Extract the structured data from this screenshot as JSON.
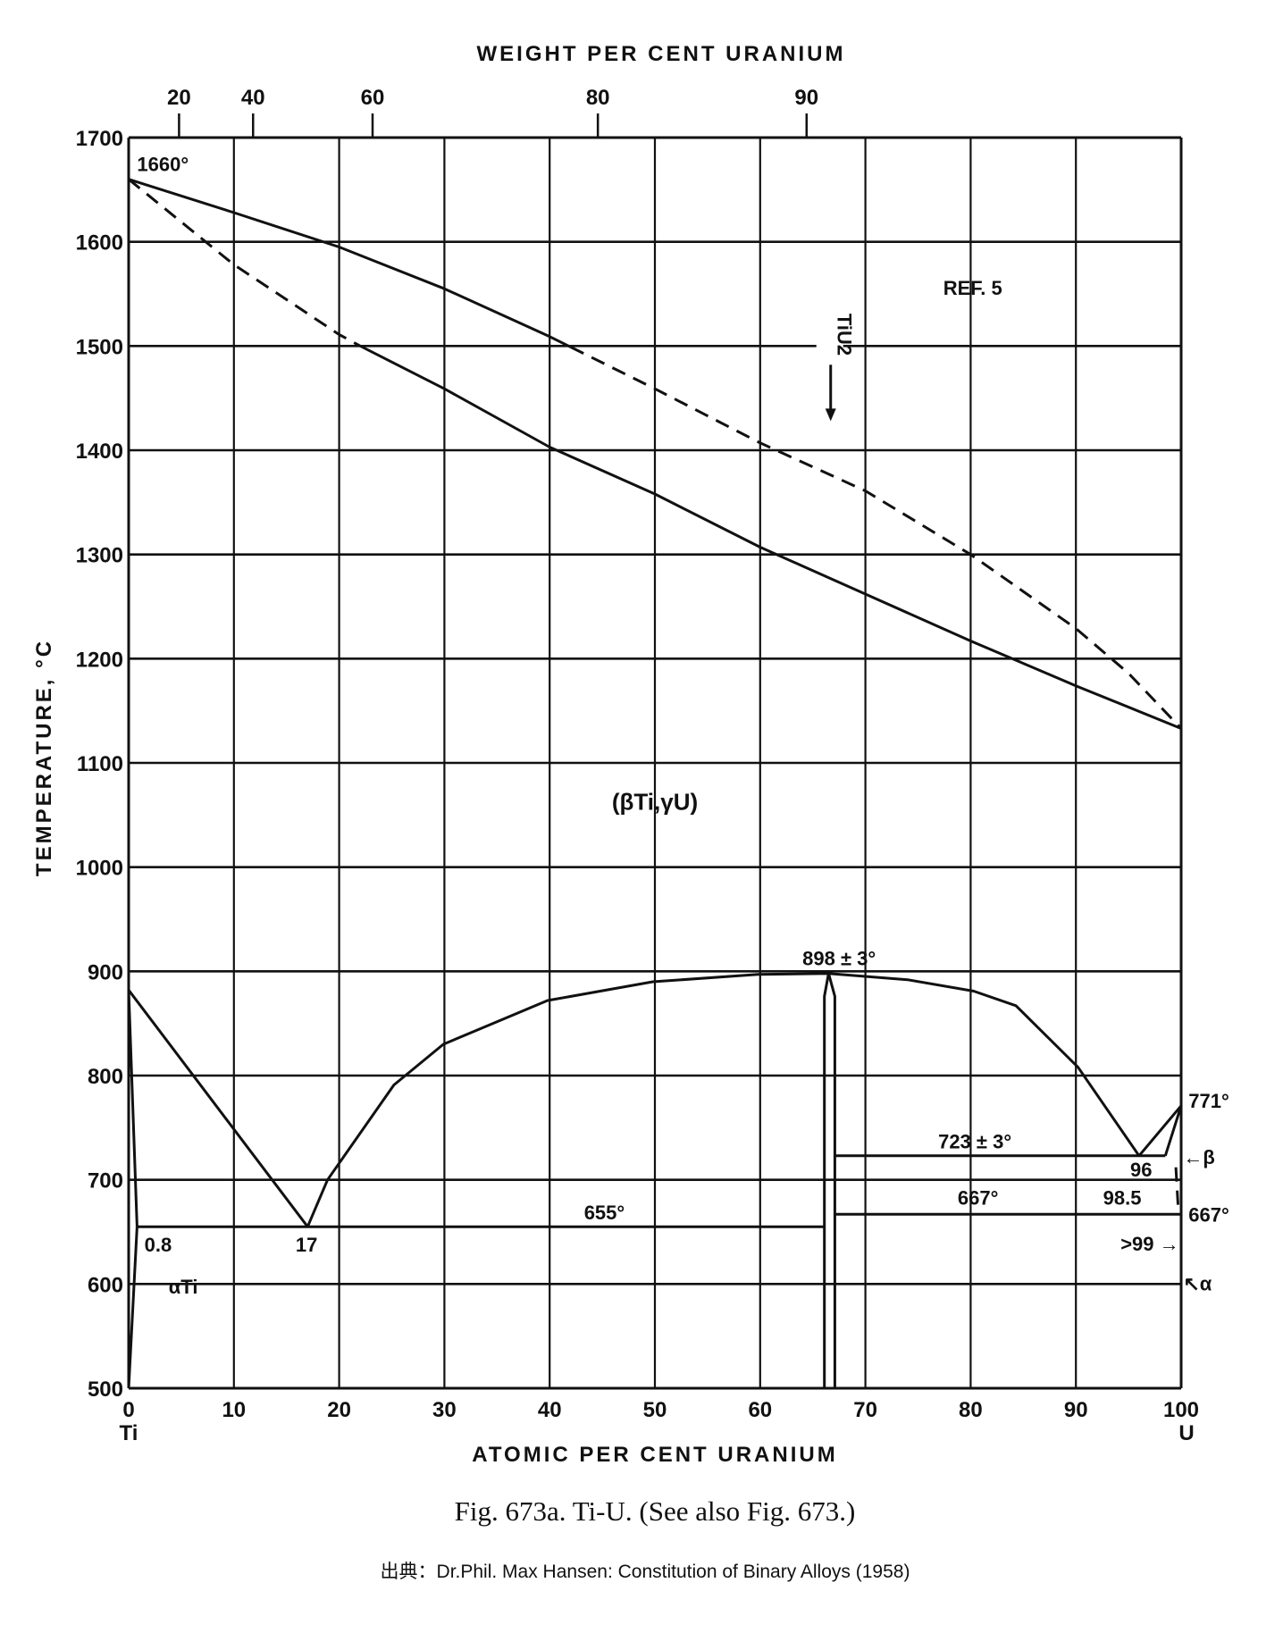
{
  "chart_data": {
    "type": "line",
    "title": "Fig. 673a. Ti-U. (See also Fig. 673.)",
    "source": "出典：Dr.Phil. Max Hansen: Constitution of Binary Alloys (1958)",
    "xlabel": "ATOMIC PER CENT URANIUM",
    "ylabel": "TEMPERATURE, °C",
    "top_xlabel": "WEIGHT PER CENT URANIUM",
    "xlim": [
      0,
      100
    ],
    "ylim": [
      500,
      1700
    ],
    "grid": true,
    "x_ticks": [
      "0",
      "10",
      "20",
      "30",
      "40",
      "50",
      "60",
      "70",
      "80",
      "90",
      "100"
    ],
    "x_end_labels": {
      "left": "Ti",
      "right": "U"
    },
    "y_ticks": [
      "500",
      "600",
      "700",
      "800",
      "900",
      "1000",
      "1100",
      "1200",
      "1300",
      "1400",
      "1500",
      "1600",
      "1700"
    ],
    "top_ticks_weight_pct": [
      "20",
      "40",
      "60",
      "80",
      "90"
    ],
    "series": [
      {
        "name": "liquidus-solid",
        "style": "solid",
        "x": [
          0,
          10,
          20,
          30,
          40,
          42
        ],
        "y": [
          1660,
          1628,
          1595,
          1555,
          1509,
          1499
        ]
      },
      {
        "name": "liquidus-dashed",
        "style": "dashed",
        "x": [
          42,
          50,
          60,
          70,
          80,
          90,
          95,
          100
        ],
        "y": [
          1499,
          1459,
          1407,
          1361,
          1300,
          1229,
          1186,
          1133
        ]
      },
      {
        "name": "solidus-dashed",
        "style": "dashed",
        "x": [
          0,
          10,
          20,
          22
        ],
        "y": [
          1660,
          1578,
          1511,
          1500
        ]
      },
      {
        "name": "solidus-solid",
        "style": "solid",
        "x": [
          22,
          30,
          40,
          50,
          60,
          70,
          80,
          90,
          100
        ],
        "y": [
          1500,
          1459,
          1403,
          1358,
          1307,
          1262,
          1217,
          1174,
          1133
        ]
      },
      {
        "name": "beta-transus-left",
        "style": "solid",
        "x": [
          0,
          17
        ],
        "y": [
          882,
          655
        ]
      },
      {
        "name": "miscibility-gap",
        "style": "solid",
        "x": [
          17,
          18.9,
          25.2,
          29.9,
          39.8,
          49.8,
          59.8,
          66.5,
          74,
          80.3,
          84.3,
          90.2,
          96
        ],
        "y": [
          655,
          700,
          791,
          830,
          872,
          890,
          897,
          898,
          892,
          881,
          867,
          808,
          723
        ]
      },
      {
        "name": "beta-u-right",
        "style": "solid",
        "x": [
          96,
          100
        ],
        "y": [
          723,
          771
        ]
      },
      {
        "name": "beta-u-inner",
        "style": "solid",
        "x": [
          98.5,
          100
        ],
        "y": [
          723,
          771
        ]
      },
      {
        "name": "beta-u-lower",
        "style": "dashed",
        "x": [
          99.5,
          99.7
        ],
        "y": [
          712,
          676
        ]
      },
      {
        "name": "alpha-ti-solvus-upper",
        "style": "solid",
        "x": [
          0,
          0.8
        ],
        "y": [
          882,
          655
        ]
      },
      {
        "name": "alpha-ti-solvus-lower",
        "style": "solid",
        "x": [
          0.8,
          0
        ],
        "y": [
          655,
          500
        ]
      },
      {
        "name": "tiu2-left",
        "style": "solid",
        "x": [
          66.1,
          66.1,
          66.5
        ],
        "y": [
          500,
          876,
          898
        ]
      },
      {
        "name": "tiu2-right",
        "style": "solid",
        "x": [
          66.5,
          67.1,
          67.1
        ],
        "y": [
          898,
          876,
          500
        ]
      },
      {
        "name": "eutectoid-655",
        "style": "solid",
        "x": [
          0.8,
          66.1
        ],
        "y": [
          655,
          655
        ]
      },
      {
        "name": "eutectoid-723",
        "style": "solid",
        "x": [
          67.1,
          98.5
        ],
        "y": [
          723,
          723
        ]
      },
      {
        "name": "eutectoid-667",
        "style": "solid",
        "x": [
          67.1,
          100
        ],
        "y": [
          667,
          667
        ]
      }
    ],
    "annotations": [
      {
        "text": "1660°",
        "x": 0.8,
        "y": 1668,
        "anchor": "start"
      },
      {
        "text": "REF. 5",
        "x": 80.2,
        "y": 1549,
        "anchor": "middle"
      },
      {
        "text": "(βTi,γU)",
        "x": 50,
        "y": 1055,
        "anchor": "middle"
      },
      {
        "text": "898 ± 3°",
        "x": 67.5,
        "y": 906,
        "anchor": "middle"
      },
      {
        "text": "723 ± 3°",
        "x": 80.4,
        "y": 730,
        "anchor": "middle"
      },
      {
        "text": "96",
        "x": 96.2,
        "y": 703,
        "anchor": "middle"
      },
      {
        "text": "98.5",
        "x": 94.4,
        "y": 676,
        "anchor": "middle"
      },
      {
        "text": "667°",
        "x": 80.7,
        "y": 676,
        "anchor": "middle"
      },
      {
        "text": "655°",
        "x": 45.2,
        "y": 662,
        "anchor": "middle"
      },
      {
        "text": "0.8",
        "x": 1.5,
        "y": 631,
        "anchor": "start"
      },
      {
        "text": "17",
        "x": 16.9,
        "y": 631,
        "anchor": "middle"
      },
      {
        "text": "771°",
        "x": 100.7,
        "y": 769,
        "anchor": "start"
      },
      {
        "text": "667°",
        "x": 100.7,
        "y": 660,
        "anchor": "start"
      },
      {
        "text": ">99 →",
        "x": 99.8,
        "y": 632,
        "anchor": "end"
      },
      {
        "text": "←β",
        "x": 100.2,
        "y": 715,
        "anchor": "start"
      },
      {
        "text": "↖α",
        "x": 100.2,
        "y": 594,
        "anchor": "start"
      },
      {
        "text": "αTi",
        "x": 3.8,
        "y": 591,
        "anchor": "start"
      }
    ],
    "tiu2_label": "TiU2"
  }
}
